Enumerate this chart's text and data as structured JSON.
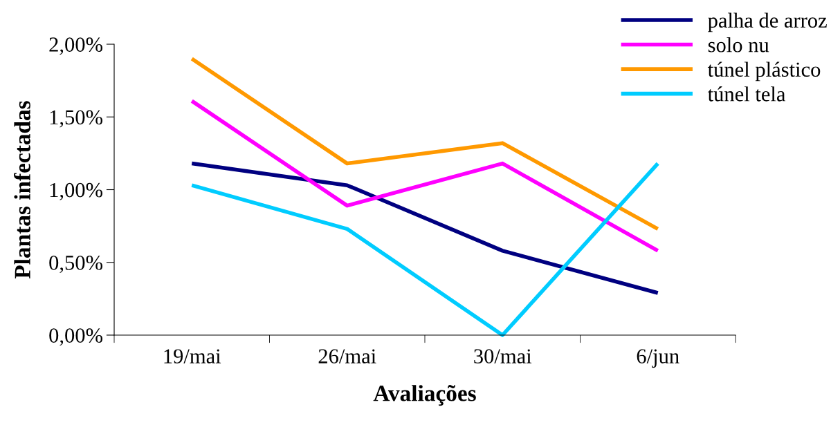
{
  "chart_data": {
    "type": "line",
    "xlabel": "Avaliações",
    "ylabel": "Plantas infectadas",
    "categories": [
      "19/mai",
      "26/mai",
      "30/mai",
      "6/jun"
    ],
    "series": [
      {
        "name": "palha de arroz",
        "color": "#000080",
        "values": [
          1.18,
          1.03,
          0.58,
          0.29
        ]
      },
      {
        "name": "solo nu",
        "color": "#ff00ff",
        "values": [
          1.61,
          0.89,
          1.18,
          0.58
        ]
      },
      {
        "name": "túnel plástico",
        "color": "#ff9900",
        "values": [
          1.9,
          1.18,
          1.32,
          0.73
        ]
      },
      {
        "name": "túnel tela",
        "color": "#00ccff",
        "values": [
          1.03,
          0.73,
          0.0,
          1.18
        ]
      }
    ],
    "ylim": [
      0,
      2
    ],
    "yticks": [
      {
        "value": 0,
        "label": "0,00%"
      },
      {
        "value": 0.5,
        "label": "0,50%"
      },
      {
        "value": 1,
        "label": "1,00%"
      },
      {
        "value": 1.5,
        "label": "1,50%"
      },
      {
        "value": 2,
        "label": "2,00%"
      }
    ],
    "grid": false,
    "legend": "top right",
    "marker": "none",
    "line_style": "solid"
  }
}
